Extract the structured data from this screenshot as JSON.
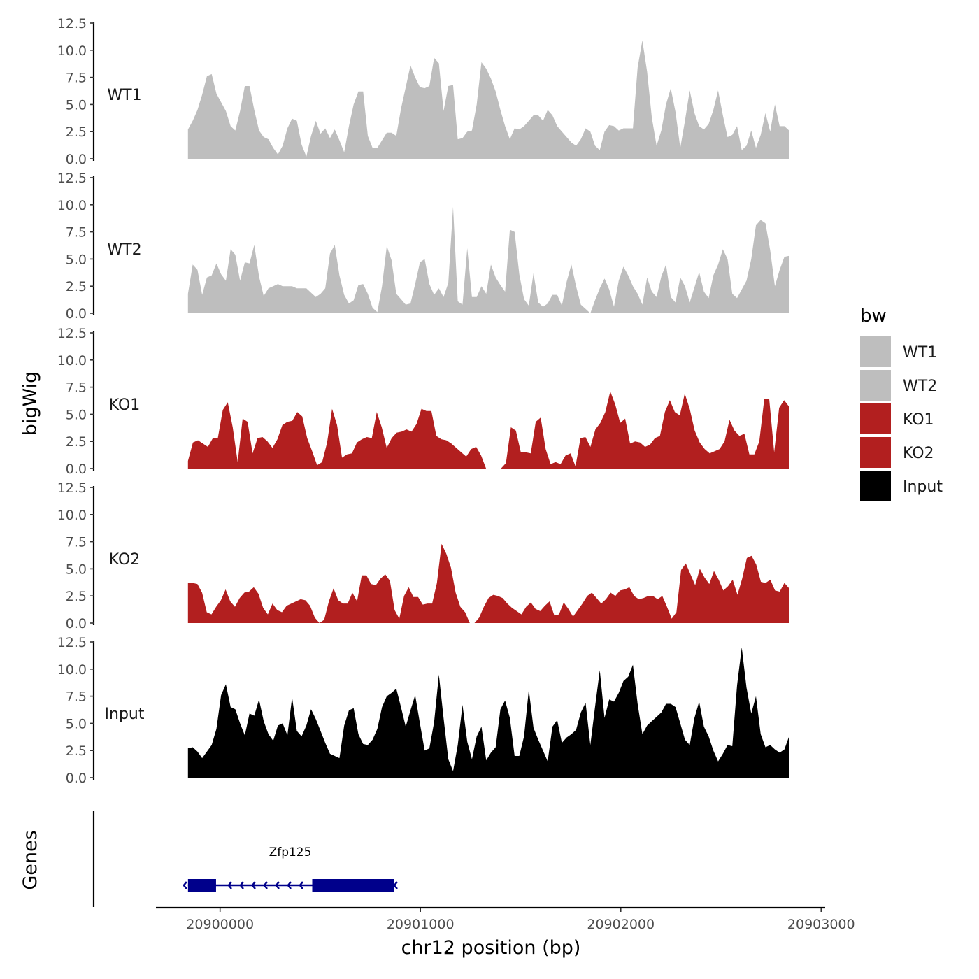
{
  "chart_data": {
    "type": "area",
    "title": "",
    "xlabel": "chr12 position (bp)",
    "ylabel": "bigWig",
    "genes_ylabel": "Genes",
    "xlim": [
      20899680,
      20903020
    ],
    "data_x_range": [
      20899840,
      20902840
    ],
    "x_ticks": [
      20900000,
      20901000,
      20902000,
      20903000
    ],
    "x_tick_labels": [
      "20900000",
      "20901000",
      "20902000",
      "20903000"
    ],
    "ylim": [
      0,
      12.5
    ],
    "y_ticks": [
      0,
      2.5,
      5,
      7.5,
      10,
      12.5
    ],
    "y_tick_labels": [
      "0.0",
      "2.5",
      "5.0",
      "7.5",
      "10.0",
      "12.5"
    ],
    "legend": {
      "title": "bw",
      "position": "right",
      "entries": [
        {
          "label": "WT1",
          "color": "#bebebe"
        },
        {
          "label": "WT2",
          "color": "#bebebe"
        },
        {
          "label": "KO1",
          "color": "#b21f1f"
        },
        {
          "label": "KO2",
          "color": "#b21f1f"
        },
        {
          "label": "Input",
          "color": "#000000"
        }
      ]
    },
    "series": [
      {
        "name": "WT1",
        "color": "#bebebe",
        "values": [
          2.7,
          3.5,
          4.5,
          5.9,
          7.6,
          7.8,
          6.0,
          5.2,
          4.4,
          3.0,
          2.6,
          4.4,
          6.7,
          6.7,
          4.5,
          2.6,
          2.0,
          1.8,
          1.0,
          0.4,
          1.2,
          2.8,
          3.7,
          3.5,
          1.3,
          0.2,
          2.1,
          3.5,
          2.3,
          2.8,
          1.9,
          2.7,
          1.7,
          0.6,
          3.0,
          5.0,
          6.2,
          6.2,
          2.1,
          1.0,
          1.0,
          1.7,
          2.4,
          2.4,
          2.1,
          4.6,
          6.6,
          8.6,
          7.5,
          6.6,
          6.5,
          6.7,
          9.3,
          8.8,
          4.4,
          6.7,
          6.8,
          1.8,
          1.9,
          2.5,
          2.6,
          5.0,
          8.9,
          8.3,
          7.4,
          6.2,
          4.5,
          3.0,
          1.8,
          2.8,
          2.7,
          3.0,
          3.5,
          4.0,
          4.0,
          3.5,
          4.5,
          4.0,
          3.0,
          2.5,
          2.0,
          1.5,
          1.2,
          1.8,
          2.8,
          2.5,
          1.2,
          0.8,
          2.5,
          3.1,
          3.0,
          2.6,
          2.8,
          2.8,
          2.8,
          8.4,
          10.9,
          8.0,
          3.8,
          1.2,
          2.6,
          5.0,
          6.5,
          4.3,
          1.0,
          3.5,
          6.3,
          4.2,
          3.0,
          2.7,
          3.2,
          4.5,
          6.3,
          4.0,
          2.0,
          2.2,
          3.0,
          0.8,
          1.2,
          2.6,
          1.0,
          2.2,
          4.2,
          2.5,
          5.0,
          3.0,
          3.0,
          2.6
        ]
      },
      {
        "name": "WT2",
        "color": "#bebebe",
        "values": [
          1.8,
          4.5,
          4.0,
          1.7,
          3.3,
          3.5,
          4.6,
          3.6,
          3.0,
          5.9,
          5.4,
          3.0,
          4.7,
          4.6,
          6.3,
          3.4,
          1.6,
          2.3,
          2.5,
          2.7,
          2.5,
          2.5,
          2.5,
          2.3,
          2.3,
          2.3,
          1.9,
          1.5,
          1.8,
          2.3,
          5.5,
          6.3,
          3.5,
          1.7,
          0.9,
          1.2,
          2.6,
          2.7,
          1.8,
          0.5,
          0.1,
          2.5,
          6.2,
          4.9,
          1.8,
          1.3,
          0.8,
          0.9,
          2.7,
          4.7,
          5.0,
          2.7,
          1.7,
          2.3,
          1.5,
          2.8,
          9.8,
          1.1,
          0.8,
          6.0,
          1.5,
          1.5,
          2.5,
          1.8,
          4.5,
          3.3,
          2.6,
          2.0,
          7.7,
          7.5,
          3.6,
          1.3,
          0.7,
          3.7,
          1.0,
          0.6,
          0.9,
          1.7,
          1.7,
          0.7,
          2.9,
          4.5,
          2.5,
          0.8,
          0.4,
          0.0,
          1.2,
          2.3,
          3.2,
          2.2,
          0.6,
          3.0,
          4.3,
          3.5,
          2.5,
          1.8,
          0.8,
          3.3,
          2.0,
          1.5,
          3.4,
          4.5,
          1.5,
          1.0,
          3.3,
          2.5,
          1.0,
          2.4,
          3.8,
          2.0,
          1.4,
          3.5,
          4.5,
          5.9,
          5.0,
          1.8,
          1.4,
          2.2,
          3.0,
          5.0,
          8.1,
          8.6,
          8.3,
          5.8,
          2.5,
          4.0,
          5.2,
          5.3
        ]
      },
      {
        "name": "KO1",
        "color": "#b21f1f",
        "values": [
          0.7,
          2.4,
          2.6,
          2.3,
          2.0,
          2.8,
          2.8,
          5.4,
          6.1,
          3.8,
          0.6,
          4.6,
          4.3,
          1.4,
          2.8,
          2.9,
          2.5,
          1.9,
          2.7,
          4.0,
          4.3,
          4.4,
          5.2,
          4.8,
          2.8,
          1.6,
          0.3,
          0.6,
          2.4,
          5.5,
          4.0,
          1.0,
          1.3,
          1.4,
          2.4,
          2.7,
          2.9,
          2.8,
          5.2,
          3.8,
          1.9,
          2.8,
          3.3,
          3.4,
          3.6,
          3.4,
          4.1,
          5.5,
          5.3,
          5.3,
          3.0,
          2.7,
          2.6,
          2.3,
          1.9,
          1.5,
          1.1,
          1.8,
          2.0,
          1.2,
          0.0,
          0.0,
          0.0,
          0.0,
          0.5,
          3.8,
          3.5,
          1.5,
          1.5,
          1.4,
          4.3,
          4.7,
          1.8,
          0.4,
          0.6,
          0.4,
          1.2,
          1.4,
          0.2,
          2.8,
          2.9,
          2.0,
          3.6,
          4.2,
          5.2,
          7.1,
          5.9,
          4.2,
          4.6,
          2.3,
          2.5,
          2.4,
          2.0,
          2.2,
          2.8,
          3.0,
          5.2,
          6.3,
          5.2,
          4.9,
          6.9,
          5.5,
          3.5,
          2.4,
          1.8,
          1.4,
          1.6,
          1.8,
          2.5,
          4.5,
          3.5,
          3.0,
          3.2,
          1.3,
          1.3,
          2.5,
          6.4,
          6.4,
          1.5,
          5.6,
          6.3,
          5.7
        ]
      },
      {
        "name": "KO2",
        "color": "#b21f1f",
        "values": [
          3.7,
          3.7,
          3.6,
          2.8,
          1.0,
          0.8,
          1.5,
          2.1,
          3.1,
          2.0,
          1.5,
          2.3,
          2.8,
          2.9,
          3.3,
          2.7,
          1.4,
          0.8,
          1.8,
          1.2,
          1.0,
          1.6,
          1.8,
          2.0,
          2.2,
          2.1,
          1.6,
          0.5,
          0.0,
          0.3,
          2.0,
          3.2,
          2.1,
          1.8,
          1.8,
          2.8,
          2.0,
          4.4,
          4.4,
          3.6,
          3.5,
          4.1,
          4.5,
          3.9,
          1.2,
          0.4,
          2.5,
          3.3,
          2.4,
          2.4,
          1.7,
          1.8,
          1.8,
          3.7,
          7.3,
          6.4,
          5.1,
          2.8,
          1.5,
          1.0,
          0.0,
          0.0,
          0.5,
          1.5,
          2.3,
          2.6,
          2.5,
          2.3,
          1.8,
          1.4,
          1.1,
          0.8,
          1.5,
          1.9,
          1.3,
          1.1,
          1.6,
          2.0,
          0.7,
          0.8,
          1.9,
          1.3,
          0.6,
          1.2,
          1.8,
          2.5,
          2.8,
          2.3,
          1.8,
          2.2,
          2.8,
          2.5,
          3.0,
          3.1,
          3.3,
          2.5,
          2.2,
          2.3,
          2.5,
          2.5,
          2.2,
          2.5,
          1.5,
          0.4,
          1.0,
          4.9,
          5.5,
          4.5,
          3.5,
          5.0,
          4.2,
          3.6,
          4.8,
          4.0,
          3.0,
          3.4,
          4.0,
          2.6,
          4.1,
          6.0,
          6.2,
          5.4,
          3.8,
          3.7,
          4.0,
          3.0,
          2.9,
          3.7,
          3.2
        ]
      },
      {
        "name": "Input",
        "color": "#000000",
        "values": [
          2.7,
          2.8,
          2.4,
          1.8,
          2.4,
          3.0,
          4.5,
          7.6,
          8.6,
          6.5,
          6.3,
          5.0,
          3.9,
          5.9,
          5.7,
          7.2,
          5.2,
          4.0,
          3.4,
          4.8,
          5.0,
          3.9,
          7.4,
          4.3,
          3.8,
          4.8,
          6.3,
          5.4,
          4.3,
          3.2,
          2.2,
          2.0,
          1.8,
          4.8,
          6.2,
          6.4,
          4.0,
          3.1,
          3.0,
          3.5,
          4.5,
          6.5,
          7.5,
          7.8,
          8.2,
          6.5,
          4.7,
          6.2,
          7.6,
          5.0,
          2.5,
          2.7,
          5.1,
          9.5,
          5.5,
          1.7,
          0.6,
          3.0,
          6.7,
          3.3,
          1.7,
          3.8,
          4.7,
          1.6,
          2.3,
          2.8,
          6.3,
          7.1,
          5.5,
          2.0,
          2.0,
          3.8,
          8.1,
          4.6,
          3.5,
          2.5,
          1.5,
          4.7,
          5.3,
          3.2,
          3.7,
          4.0,
          4.4,
          6.0,
          6.9,
          3.0,
          6.5,
          9.9,
          5.5,
          7.2,
          7.0,
          7.8,
          8.9,
          9.3,
          10.4,
          6.8,
          4.0,
          4.8,
          5.2,
          5.6,
          6.0,
          6.8,
          6.8,
          6.5,
          5.0,
          3.5,
          3.0,
          5.5,
          7.0,
          4.7,
          3.8,
          2.5,
          1.5,
          2.2,
          3.0,
          2.9,
          8.5,
          12.0,
          8.3,
          5.9,
          7.5,
          4.0,
          2.8,
          3.0,
          2.6,
          2.3,
          2.6,
          3.8
        ]
      }
    ],
    "gene_tracks": [
      {
        "name": "Zfp125",
        "strand": "-",
        "color": "#00008b",
        "start": 20899840,
        "end": 20900870,
        "exons": [
          [
            20899840,
            20899980
          ],
          [
            20900460,
            20900870
          ]
        ]
      }
    ]
  }
}
